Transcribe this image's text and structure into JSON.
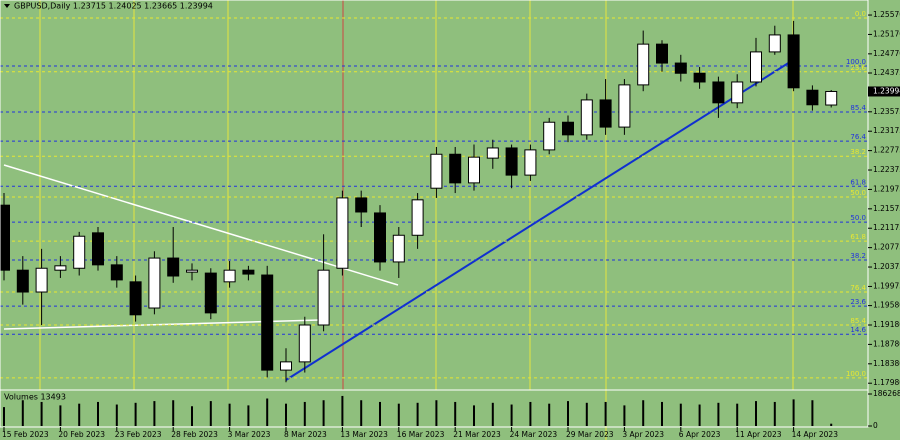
{
  "chart_data": {
    "type": "candlestick",
    "title": "GBPUSD,Daily  1.23715 1.24025 1.23665 1.23994",
    "categories": [
      "15 Feb 2023",
      null,
      null,
      "20 Feb 2023",
      null,
      null,
      "23 Feb 2023",
      null,
      null,
      "28 Feb 2023",
      null,
      null,
      "3 Mar 2023",
      null,
      null,
      "8 Mar 2023",
      null,
      null,
      "13 Mar 2023",
      null,
      null,
      "16 Mar 2023",
      null,
      null,
      "21 Mar 2023",
      null,
      null,
      "24 Mar 2023",
      null,
      null,
      "29 Mar 2023",
      null,
      null,
      "3 Apr 2023",
      null,
      null,
      "6 Apr 2023",
      null,
      null,
      "11 Apr 2023",
      null,
      null,
      "14 Apr 2023",
      null,
      null
    ],
    "open": [
      1.2165,
      1.2031,
      1.1986,
      1.2031,
      1.2035,
      1.2108,
      1.2042,
      1.2007,
      1.1953,
      1.2056,
      1.2027,
      1.2025,
      1.2007,
      1.2031,
      1.2021,
      1.1825,
      1.1842,
      1.1918,
      1.2035,
      1.218,
      1.2149,
      1.2048,
      1.2103,
      1.22,
      1.227,
      1.2211,
      1.2262,
      1.2283,
      1.2227,
      1.2279,
      1.2336,
      1.231,
      1.2382,
      1.2326,
      1.2413,
      1.2497,
      1.2458,
      1.2437,
      1.2419,
      1.2376,
      1.2419,
      1.2481,
      1.2516,
      1.2402,
      1.23715
    ],
    "high": [
      1.219,
      1.206,
      1.2075,
      1.206,
      1.211,
      1.212,
      1.206,
      1.202,
      1.207,
      1.212,
      1.2045,
      1.2035,
      1.205,
      1.204,
      1.204,
      1.187,
      1.1935,
      1.2105,
      1.2195,
      1.2195,
      1.2165,
      1.212,
      1.219,
      1.2285,
      1.2285,
      1.229,
      1.23,
      1.229,
      1.229,
      1.2345,
      1.235,
      1.2395,
      1.2425,
      1.2425,
      1.2525,
      1.2505,
      1.2475,
      1.245,
      1.243,
      1.2435,
      1.251,
      1.2535,
      1.2545,
      1.2412,
      1.24025
    ],
    "low": [
      1.201,
      1.196,
      1.1918,
      1.2015,
      1.202,
      1.203,
      1.1995,
      1.1925,
      1.194,
      1.2005,
      1.201,
      1.193,
      1.1995,
      1.201,
      1.181,
      1.18,
      1.182,
      1.1905,
      1.202,
      1.212,
      1.203,
      1.2015,
      1.2075,
      1.218,
      1.219,
      1.2195,
      1.224,
      1.22,
      1.2215,
      1.227,
      1.2295,
      1.23,
      1.231,
      1.231,
      1.24,
      1.244,
      1.242,
      1.2405,
      1.2345,
      1.2365,
      1.241,
      1.2475,
      1.24,
      1.236,
      1.23665
    ],
    "close": [
      1.2031,
      1.1986,
      1.2035,
      1.204,
      1.2101,
      1.2042,
      1.2011,
      1.1939,
      1.2056,
      1.2019,
      1.2031,
      1.1943,
      1.2031,
      1.2023,
      1.1825,
      1.1842,
      1.1918,
      1.2031,
      1.218,
      1.2151,
      1.2048,
      1.2103,
      1.2176,
      1.227,
      1.2211,
      1.2264,
      1.2283,
      1.2227,
      1.2279,
      1.2336,
      1.231,
      1.2382,
      1.2326,
      1.2413,
      1.2497,
      1.2458,
      1.2437,
      1.2419,
      1.2376,
      1.2419,
      1.2481,
      1.2516,
      1.2407,
      1.2372,
      1.23994
    ],
    "up_color": "#ffffff",
    "down_color": "#000000",
    "ylim": [
      1.1784,
      1.2588
    ],
    "yticks": [
      {
        "value": 1.2557,
        "label": "1.25570"
      },
      {
        "value": 1.2517,
        "label": "1.25170"
      },
      {
        "value": 1.2477,
        "label": "1.24770"
      },
      1.24375,
      {
        "value": 1.23575,
        "label": "1.23575"
      },
      {
        "value": 1.23175,
        "label": "1.23175"
      },
      {
        "value": 1.22775,
        "label": "1.22775"
      },
      {
        "value": 1.22375,
        "label": "1.22375"
      },
      {
        "value": 1.21975,
        "label": "1.21975"
      },
      {
        "value": 1.21575,
        "label": "1.21575"
      },
      {
        "value": 1.21175,
        "label": "1.21175"
      },
      {
        "value": 1.20775,
        "label": "1.20775"
      },
      {
        "value": 1.20375,
        "label": "1.20375"
      },
      {
        "value": 1.19975,
        "label": "1.19975"
      },
      {
        "value": 1.1958,
        "label": "1.19580"
      },
      {
        "value": 1.1918,
        "label": "1.19180"
      },
      {
        "value": 1.1878,
        "label": "1.18780"
      },
      {
        "value": 1.1838,
        "label": "1.18380"
      },
      {
        "value": 1.1798,
        "label": "1.17980"
      }
    ],
    "fib_blue": {
      "color": "#2233dd",
      "levels": [
        {
          "label": "100.0",
          "value": 1.2452
        },
        {
          "label": "85.4",
          "value": 1.2357
        },
        {
          "label": "76.4",
          "value": 1.2297
        },
        {
          "label": "61.8",
          "value": 1.2204
        },
        {
          "label": "50.0",
          "value": 1.213
        },
        {
          "label": "38.2",
          "value": 1.2052
        },
        {
          "label": "23.6",
          "value": 1.1957
        },
        {
          "label": "14.6",
          "value": 1.1899
        }
      ]
    },
    "fib_yellow": {
      "color": "#e8e830",
      "levels": [
        {
          "label": "0.0",
          "value": 1.2551
        },
        {
          "label": "23.6",
          "value": 1.244
        },
        {
          "label": "38.2",
          "value": 1.2266
        },
        {
          "label": "50.0",
          "value": 1.2182
        },
        {
          "label": "61.8",
          "value": 1.2091
        },
        {
          "label": "76.4",
          "value": 1.1986
        },
        {
          "label": "85.4",
          "value": 1.1918
        },
        {
          "label": "100.0",
          "value": 1.1809
        }
      ]
    },
    "volume": {
      "title": "Volumes 13493",
      "color": "#000000",
      "values": [
        110000,
        150000,
        140000,
        120000,
        130000,
        140000,
        125000,
        135000,
        145000,
        150000,
        115000,
        145000,
        130000,
        120000,
        160000,
        130000,
        140000,
        150000,
        175000,
        150000,
        140000,
        130000,
        135000,
        150000,
        140000,
        120000,
        135000,
        125000,
        140000,
        130000,
        145000,
        135000,
        140000,
        120000,
        150000,
        140000,
        130000,
        125000,
        135000,
        130000,
        145000,
        140000,
        155000,
        150000,
        13493
      ],
      "ylim": [
        0,
        186268
      ],
      "yticks": [
        0,
        186268
      ]
    }
  }
}
